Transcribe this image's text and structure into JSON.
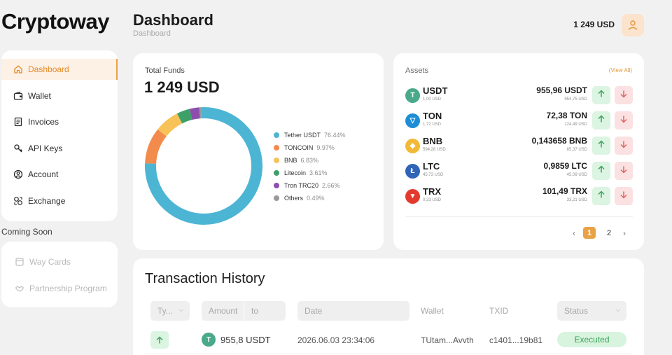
{
  "brand": {
    "logo_text": "Cryptoway"
  },
  "header": {
    "title": "Dashboard",
    "breadcrumb": "Dashboard",
    "balance": "1 249 USD"
  },
  "sidebar": {
    "items": [
      {
        "label": "Dashboard",
        "icon": "home-icon",
        "active": true
      },
      {
        "label": "Wallet",
        "icon": "wallet-icon"
      },
      {
        "label": "Invoices",
        "icon": "invoice-icon"
      },
      {
        "label": "API Keys",
        "icon": "key-icon"
      },
      {
        "label": "Account",
        "icon": "account-icon"
      },
      {
        "label": "Exchange",
        "icon": "exchange-icon"
      }
    ],
    "coming_soon_label": "Coming Soon",
    "coming_soon_items": [
      {
        "label": "Way Cards",
        "icon": "card-icon"
      },
      {
        "label": "Partnership Program",
        "icon": "handshake-icon"
      }
    ]
  },
  "funds": {
    "label": "Total Funds",
    "value": "1 249 USD",
    "legend": [
      {
        "name": "Tether USDT",
        "pct": "76.44%",
        "value": 76.44,
        "color": "#4db5d4"
      },
      {
        "name": "TONCOIN",
        "pct": "9.97%",
        "value": 9.97,
        "color": "#f28b4b"
      },
      {
        "name": "BNB",
        "pct": "6.83%",
        "value": 6.83,
        "color": "#f7c258"
      },
      {
        "name": "Litecoin",
        "pct": "3.61%",
        "value": 3.61,
        "color": "#3ea069"
      },
      {
        "name": "Tron TRC20",
        "pct": "2.66%",
        "value": 2.66,
        "color": "#8d4fae"
      },
      {
        "name": "Others",
        "pct": "0.49%",
        "value": 0.49,
        "color": "#9a9a9a"
      }
    ]
  },
  "assets": {
    "title": "Assets",
    "view_all": "(View All)",
    "rows": [
      {
        "symbol": "USDT",
        "sub": "1,00 USD",
        "amount": "955,96 USDT",
        "amount_sub": "954,75 USD",
        "coin_color": "#4aa98a",
        "coin_glyph": "T"
      },
      {
        "symbol": "TON",
        "sub": "1,72 USD",
        "amount": "72,38 TON",
        "amount_sub": "124,49 USD",
        "coin_color": "#1d8ed6",
        "coin_glyph": "▽"
      },
      {
        "symbol": "BNB",
        "sub": "594,28 USD",
        "amount": "0,143658 BNB",
        "amount_sub": "85,37 USD",
        "coin_color": "#f1b936",
        "coin_glyph": "◆"
      },
      {
        "symbol": "LTC",
        "sub": "45,73 USD",
        "amount": "0,9859 LTC",
        "amount_sub": "45,09 USD",
        "coin_color": "#2f64b7",
        "coin_glyph": "Ł"
      },
      {
        "symbol": "TRX",
        "sub": "0,33 USD",
        "amount": "101,49 TRX",
        "amount_sub": "33,21 USD",
        "coin_color": "#e43a2e",
        "coin_glyph": "▼"
      }
    ],
    "pager": {
      "prev": "‹",
      "pages": [
        "1",
        "2"
      ],
      "current": "1",
      "next": "›"
    }
  },
  "transactions": {
    "title": "Transaction History",
    "filters": {
      "type": "Ty...",
      "amount_from": "Amount",
      "amount_to": "to",
      "date": "Date",
      "status": "Status"
    },
    "columns": {
      "wallet": "Wallet",
      "txid": "TXID"
    },
    "rows": [
      {
        "direction": "up",
        "coin_glyph": "T",
        "amount": "955,8 USDT",
        "date": "2026.06.03 23:34:06",
        "wallet": "TUtam...Avvth",
        "txid": "c1401...19b81",
        "status": "Executed"
      }
    ]
  }
}
